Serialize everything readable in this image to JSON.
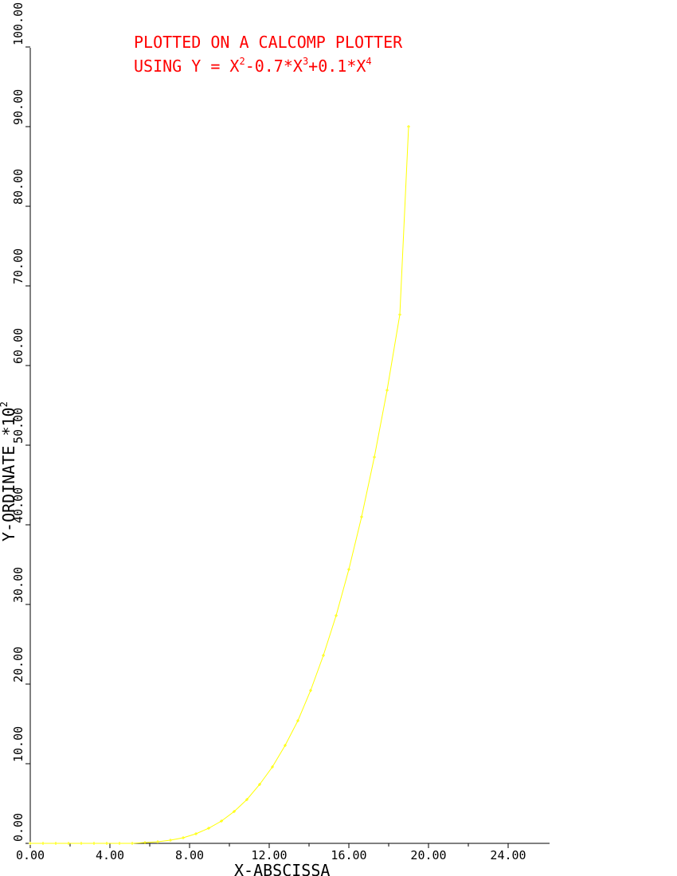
{
  "chart_data": {
    "type": "line",
    "title_line1": "PLOTTED ON A CALCOMP PLOTTER",
    "title_line2": "USING  Y = X",
    "title_exp1": "2",
    "title_mid1": "-0.7*X",
    "title_exp2": "3",
    "title_mid2": "+0.1*X",
    "title_exp3": "4",
    "xlabel": "X-ABSCISSA",
    "ylabel": "Y-ORDINATE  *10",
    "ylabel_exp": "2",
    "xlim": [
      0,
      25.8
    ],
    "ylim": [
      0,
      100
    ],
    "x_ticks": [
      0,
      4,
      8,
      12,
      16,
      20,
      24
    ],
    "x_tick_labels": [
      "0.00",
      "4.00",
      "8.00",
      "12.00",
      "16.00",
      "20.00",
      "24.00"
    ],
    "y_ticks": [
      0,
      10,
      20,
      30,
      40,
      50,
      60,
      70,
      80,
      90,
      100
    ],
    "y_tick_labels": [
      "0.00",
      "10.00",
      "20.00",
      "30.00",
      "40.00",
      "50.00",
      "60.00",
      "70.00",
      "80.00",
      "90.00",
      "100.00"
    ],
    "series": [
      {
        "x": [
          0.0,
          0.64,
          1.28,
          1.92,
          2.56,
          3.2,
          3.84,
          4.48,
          5.12,
          5.76,
          6.4,
          7.04,
          7.68,
          8.32,
          8.96,
          9.6,
          10.24,
          10.88,
          11.52,
          12.16,
          12.8,
          13.44,
          14.08,
          14.72,
          15.36,
          16.0,
          16.64,
          17.28,
          17.92,
          18.56,
          19.0
        ],
        "y": [
          0,
          0,
          0,
          0,
          0,
          0,
          0,
          0,
          0,
          0.1,
          0.2,
          0.4,
          0.7,
          1.2,
          1.9,
          2.8,
          4.0,
          5.5,
          7.4,
          9.6,
          12.3,
          15.4,
          19.2,
          23.6,
          28.6,
          34.4,
          41.0,
          48.5,
          56.9,
          66.4,
          90.0
        ]
      }
    ],
    "line_color": "#ffff00",
    "title_color": "#ff0000",
    "axis_color": "#000000",
    "grid": false
  }
}
